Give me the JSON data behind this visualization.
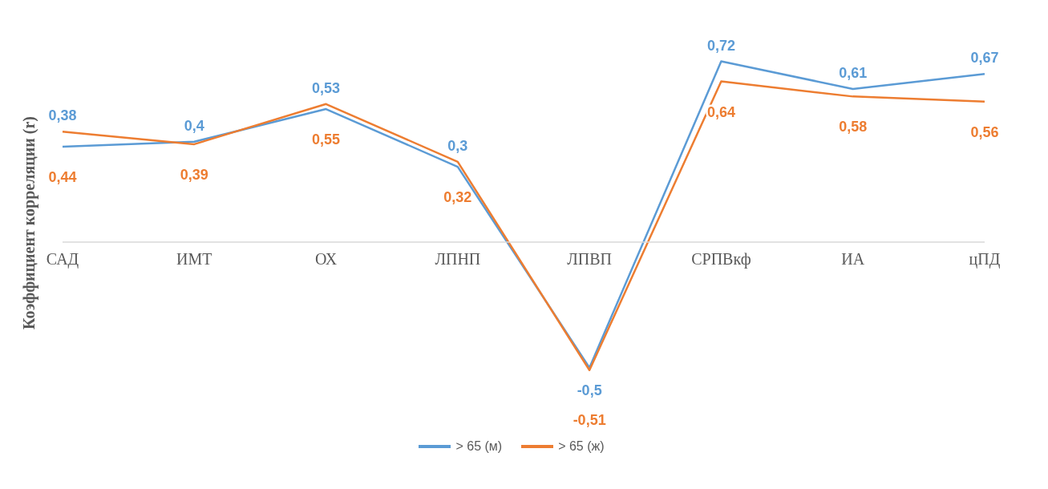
{
  "chart_data": {
    "type": "line",
    "ylabel": "Коэффициент корреляции (r)",
    "categories": [
      "САД",
      "ИМТ",
      "ОХ",
      "ЛПНП",
      "ЛПВП",
      "СРПВкф",
      "ИА",
      "цПД"
    ],
    "series": [
      {
        "name": "> 65 (м)",
        "color": "#5b9bd5",
        "values": [
          0.38,
          0.4,
          0.53,
          0.3,
          -0.5,
          0.72,
          0.61,
          0.67
        ],
        "value_labels": [
          "0,38",
          "0,4",
          "0,53",
          "0,3",
          "-0,5",
          "0,72",
          "0,61",
          "0,67"
        ]
      },
      {
        "name": "> 65 (ж)",
        "color": "#ed7d31",
        "values": [
          0.44,
          0.39,
          0.55,
          0.32,
          -0.51,
          0.64,
          0.58,
          0.56
        ],
        "value_labels": [
          "0,44",
          "0,39",
          "0,55",
          "0,32",
          "-0,51",
          "0,64",
          "0,58",
          "0,56"
        ]
      }
    ],
    "tick_labels": "x",
    "legend": "bottom"
  }
}
